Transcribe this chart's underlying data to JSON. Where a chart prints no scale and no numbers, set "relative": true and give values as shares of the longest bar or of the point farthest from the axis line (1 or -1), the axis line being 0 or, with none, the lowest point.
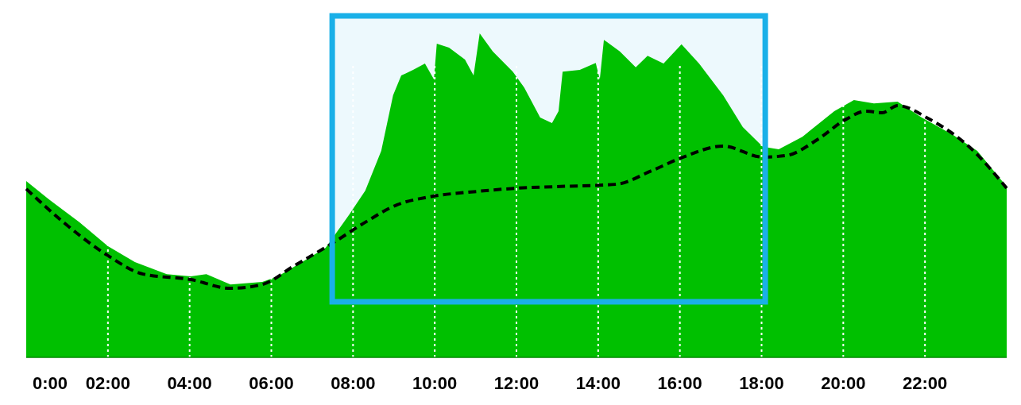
{
  "chart_data": {
    "type": "area",
    "relative": true,
    "xlim": [
      0,
      24
    ],
    "xticks": [
      {
        "value": 0,
        "label": "0:00"
      },
      {
        "value": 2,
        "label": "02:00"
      },
      {
        "value": 4,
        "label": "04:00"
      },
      {
        "value": 6,
        "label": "06:00"
      },
      {
        "value": 8,
        "label": "08:00"
      },
      {
        "value": 10,
        "label": "10:00"
      },
      {
        "value": 12,
        "label": "12:00"
      },
      {
        "value": 14,
        "label": "14:00"
      },
      {
        "value": 16,
        "label": "16:00"
      },
      {
        "value": 18,
        "label": "18:00"
      },
      {
        "value": 20,
        "label": "20:00"
      },
      {
        "value": 22,
        "label": "22:00"
      }
    ],
    "grid": "x",
    "marker": "none",
    "series": [
      {
        "type": "area",
        "color": "#00c000",
        "x": [
          0,
          0.53,
          1.3,
          2.0,
          2.66,
          3.44,
          4.03,
          4.41,
          5.0,
          5.78,
          6.16,
          6.75,
          7.33,
          7.91,
          8.3,
          8.69,
          8.98,
          9.18,
          9.47,
          9.76,
          9.98,
          10.05,
          10.35,
          10.74,
          10.95,
          11.1,
          11.42,
          11.91,
          12.19,
          12.58,
          12.87,
          13.03,
          13.13,
          13.55,
          13.94,
          14.04,
          14.14,
          14.53,
          14.92,
          15.21,
          15.6,
          16.04,
          16.47,
          17.06,
          17.54,
          18.03,
          18.42,
          19.0,
          19.78,
          20.26,
          20.75,
          21.33,
          21.92,
          22.69,
          23.28,
          24.0
        ],
        "values": [
          0.544,
          0.49,
          0.417,
          0.343,
          0.294,
          0.257,
          0.25,
          0.257,
          0.225,
          0.233,
          0.25,
          0.294,
          0.338,
          0.441,
          0.515,
          0.637,
          0.809,
          0.87,
          0.887,
          0.907,
          0.858,
          0.968,
          0.956,
          0.919,
          0.87,
          1.0,
          0.944,
          0.882,
          0.833,
          0.74,
          0.723,
          0.76,
          0.882,
          0.887,
          0.909,
          0.858,
          0.98,
          0.944,
          0.895,
          0.931,
          0.907,
          0.966,
          0.907,
          0.809,
          0.711,
          0.65,
          0.642,
          0.681,
          0.76,
          0.794,
          0.784,
          0.789,
          0.74,
          0.686,
          0.637,
          0.527
        ]
      },
      {
        "type": "line",
        "color": "#000000",
        "line_style": "dashed",
        "x": [
          0,
          0.91,
          2.0,
          2.86,
          4.03,
          5.0,
          5.78,
          6.55,
          7.53,
          8.3,
          9.08,
          9.86,
          11.03,
          12.0,
          12.97,
          14.43,
          15.31,
          16.08,
          17.06,
          18.03,
          18.61,
          19.39,
          20.07,
          20.56,
          20.95,
          21.33,
          22.11,
          23.08,
          24.0
        ],
        "values": [
          0.52,
          0.417,
          0.314,
          0.257,
          0.24,
          0.213,
          0.225,
          0.282,
          0.355,
          0.417,
          0.471,
          0.495,
          0.512,
          0.522,
          0.527,
          0.534,
          0.576,
          0.618,
          0.652,
          0.618,
          0.623,
          0.674,
          0.735,
          0.76,
          0.755,
          0.777,
          0.735,
          0.65,
          0.522
        ]
      }
    ],
    "bands": [
      {
        "axis": "x",
        "from": 7.49,
        "to": 18.09,
        "color": "#1ab0e8"
      }
    ]
  }
}
